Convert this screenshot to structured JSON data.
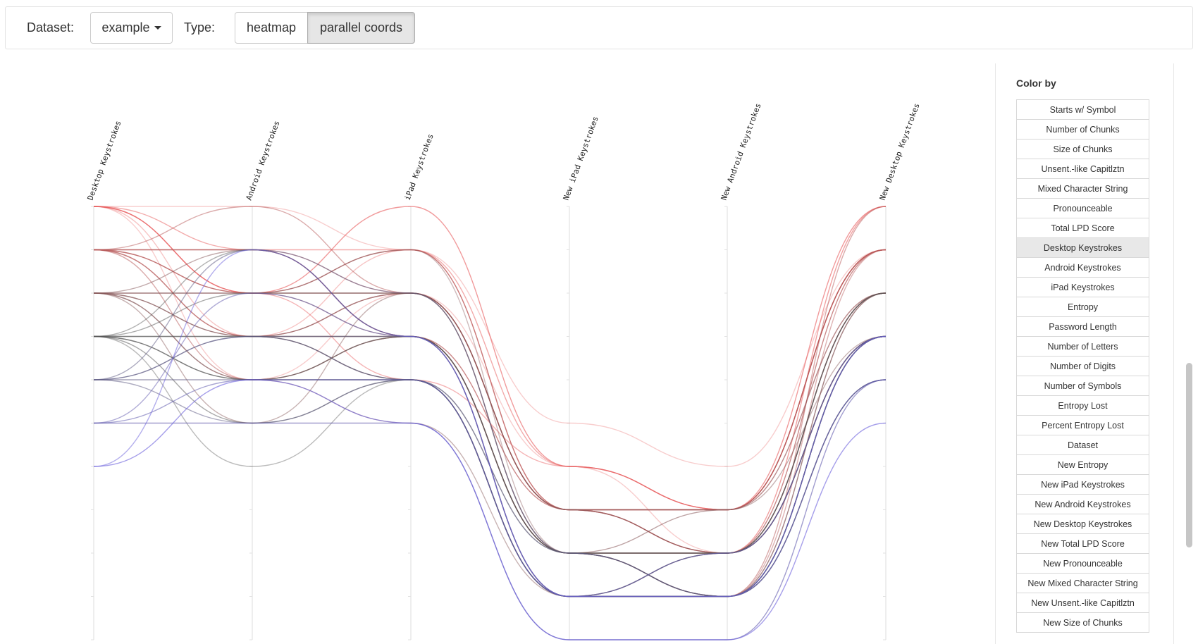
{
  "toolbar": {
    "dataset_label": "Dataset:",
    "dataset_value": "example",
    "type_label": "Type:",
    "type_options": [
      "heatmap",
      "parallel coords"
    ],
    "type_selected": "parallel coords"
  },
  "sidebar": {
    "title": "Color by",
    "selected": "Desktop Keystrokes",
    "items": [
      "Starts w/ Symbol",
      "Number of Chunks",
      "Size of Chunks",
      "Unsent.-like Capitlztn",
      "Mixed Character String",
      "Pronounceable",
      "Total LPD Score",
      "Desktop Keystrokes",
      "Android Keystrokes",
      "iPad Keystrokes",
      "Entropy",
      "Password Length",
      "Number of Letters",
      "Number of Digits",
      "Number of Symbols",
      "Entropy Lost",
      "Percent Entropy Lost",
      "Dataset",
      "New Entropy",
      "New iPad Keystrokes",
      "New Android Keystrokes",
      "New Desktop Keystrokes",
      "New Total LPD Score",
      "New Pronounceable",
      "New Mixed Character String",
      "New Unsent.-like Capitlztn",
      "New Size of Chunks"
    ]
  },
  "colors": {
    "high": "#e8595a",
    "mid": "#555555",
    "low": "#6a5fdc"
  },
  "chart_data": {
    "type": "parallel coordinates",
    "axes": [
      "Desktop Keystrokes",
      "Android Keystrokes",
      "iPad Keystrokes",
      "New iPad Keystrokes",
      "New Android Keystrokes",
      "New Desktop Keystrokes"
    ],
    "levels": 6,
    "color_by": "Desktop Keystrokes",
    "lines": [
      {
        "values": [
          0,
          2,
          0,
          6,
          7,
          0
        ],
        "opacity": 0.6
      },
      {
        "values": [
          0,
          1,
          1,
          6,
          7,
          1
        ],
        "opacity": 0.5
      },
      {
        "values": [
          0,
          2,
          4,
          6,
          7,
          1
        ],
        "opacity": 0.45
      },
      {
        "values": [
          0,
          3,
          1,
          7,
          8,
          0
        ],
        "opacity": 0.35
      },
      {
        "values": [
          0,
          0,
          1,
          5,
          6,
          1
        ],
        "opacity": 0.3
      },
      {
        "values": [
          0,
          4,
          2,
          7,
          7,
          2
        ],
        "opacity": 0.3
      },
      {
        "values": [
          0,
          2,
          2,
          6,
          8,
          0
        ],
        "opacity": 0.3
      },
      {
        "values": [
          1,
          1,
          3,
          7,
          7,
          1
        ],
        "opacity": 0.7
      },
      {
        "values": [
          1,
          2,
          1,
          7,
          8,
          1
        ],
        "opacity": 0.7
      },
      {
        "values": [
          1,
          3,
          2,
          7,
          7,
          1
        ],
        "opacity": 0.6
      },
      {
        "values": [
          1,
          1,
          2,
          8,
          9,
          0
        ],
        "opacity": 0.5
      },
      {
        "values": [
          1,
          0,
          2,
          7,
          8,
          2
        ],
        "opacity": 0.5
      },
      {
        "values": [
          1,
          4,
          3,
          8,
          8,
          3
        ],
        "opacity": 0.5
      },
      {
        "values": [
          1,
          2,
          2,
          7,
          7,
          1
        ],
        "opacity": 0.45
      },
      {
        "values": [
          1,
          3,
          3,
          8,
          9,
          1
        ],
        "opacity": 0.45
      },
      {
        "values": [
          2,
          3,
          2,
          7,
          8,
          2
        ],
        "opacity": 0.55
      },
      {
        "values": [
          2,
          2,
          3,
          8,
          7,
          2
        ],
        "opacity": 0.55
      },
      {
        "values": [
          2,
          4,
          3,
          8,
          8,
          3
        ],
        "opacity": 0.5
      },
      {
        "values": [
          2,
          1,
          3,
          9,
          9,
          2
        ],
        "opacity": 0.5
      },
      {
        "values": [
          2,
          3,
          4,
          9,
          8,
          3
        ],
        "opacity": 0.5
      },
      {
        "values": [
          2,
          5,
          2,
          7,
          7,
          3
        ],
        "opacity": 0.45
      },
      {
        "values": [
          2,
          4,
          5,
          9,
          9,
          2
        ],
        "opacity": 0.45
      },
      {
        "values": [
          2,
          2,
          1,
          8,
          8,
          2
        ],
        "opacity": 0.4
      },
      {
        "values": [
          3,
          4,
          3,
          8,
          8,
          2
        ],
        "opacity": 0.55
      },
      {
        "values": [
          3,
          3,
          3,
          8,
          9,
          3
        ],
        "opacity": 0.55
      },
      {
        "values": [
          3,
          5,
          4,
          9,
          9,
          3
        ],
        "opacity": 0.5
      },
      {
        "values": [
          3,
          2,
          2,
          8,
          8,
          3
        ],
        "opacity": 0.5
      },
      {
        "values": [
          3,
          4,
          4,
          9,
          8,
          2
        ],
        "opacity": 0.5
      },
      {
        "values": [
          3,
          1,
          3,
          9,
          9,
          3
        ],
        "opacity": 0.45
      },
      {
        "values": [
          3,
          3,
          4,
          8,
          9,
          4
        ],
        "opacity": 0.45
      },
      {
        "values": [
          3,
          6,
          4,
          9,
          9,
          3
        ],
        "opacity": 0.4
      },
      {
        "values": [
          4,
          3,
          4,
          9,
          9,
          3
        ],
        "opacity": 0.55
      },
      {
        "values": [
          4,
          4,
          4,
          9,
          8,
          3
        ],
        "opacity": 0.55
      },
      {
        "values": [
          4,
          5,
          4,
          8,
          9,
          4
        ],
        "opacity": 0.5
      },
      {
        "values": [
          4,
          1,
          2,
          8,
          9,
          3
        ],
        "opacity": 0.5
      },
      {
        "values": [
          4,
          3,
          3,
          9,
          9,
          4
        ],
        "opacity": 0.45
      },
      {
        "values": [
          5,
          5,
          5,
          10,
          10,
          4
        ],
        "opacity": 0.6
      },
      {
        "values": [
          5,
          4,
          4,
          9,
          9,
          4
        ],
        "opacity": 0.55
      },
      {
        "values": [
          5,
          2,
          3,
          9,
          8,
          3
        ],
        "opacity": 0.5
      },
      {
        "values": [
          6,
          4,
          5,
          10,
          10,
          5
        ],
        "opacity": 0.6
      },
      {
        "values": [
          6,
          1,
          3,
          9,
          9,
          3
        ],
        "opacity": 0.5
      }
    ]
  }
}
